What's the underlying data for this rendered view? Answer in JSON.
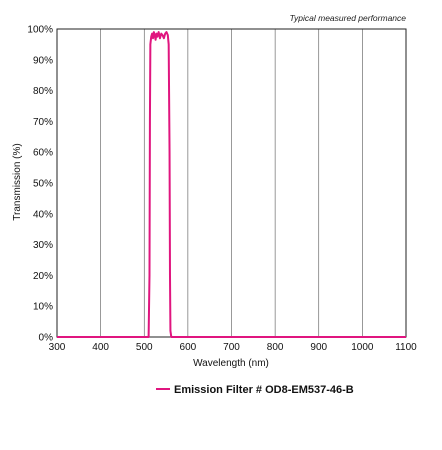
{
  "chart_data": {
    "type": "line",
    "annotation": "Typical measured performance",
    "xlabel": "Wavelength (nm)",
    "ylabel": "Transmission (%)",
    "xlim": [
      300,
      1100
    ],
    "ylim": [
      0,
      100
    ],
    "x_ticks": [
      300,
      400,
      500,
      600,
      700,
      800,
      900,
      1000,
      1100
    ],
    "y_ticks": [
      "0%",
      "10%",
      "20%",
      "30%",
      "40%",
      "50%",
      "60%",
      "70%",
      "80%",
      "90%",
      "100%"
    ],
    "grid": "vertical",
    "legend_position": "bottom-center",
    "series": [
      {
        "name": "Emission Filter # OD8-EM537-46-B",
        "color": "#e0157f",
        "x": [
          300,
          500,
          510,
          512,
          513,
          514,
          516,
          518,
          520,
          522,
          524,
          526,
          528,
          530,
          533,
          536,
          539,
          542,
          545,
          548,
          551,
          554,
          556,
          558,
          559,
          560,
          562,
          1100
        ],
        "y": [
          0,
          0,
          0,
          20,
          70,
          95,
          97.5,
          98.5,
          97,
          99,
          98,
          96.5,
          98.5,
          97.5,
          99,
          97,
          98.5,
          98,
          97,
          98.5,
          99,
          98,
          95,
          60,
          20,
          2,
          0,
          0
        ]
      }
    ]
  }
}
